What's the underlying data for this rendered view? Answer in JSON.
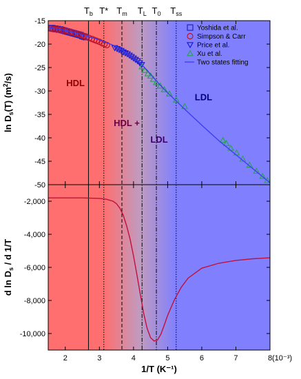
{
  "chart_data": {
    "type": "scatter",
    "shared_x": {
      "label": "1/T (K⁻¹)",
      "scale_label": "(10⁻³)",
      "range": [
        1.5,
        8.0
      ],
      "ticks": [
        "2",
        "3",
        "4",
        "5",
        "6",
        "7",
        "8"
      ]
    },
    "region_colors": {
      "hdl": "#ff6f6f",
      "mid": "#c09bc0",
      "ldl": "#8080ff"
    },
    "region_labels": [
      {
        "text": "HDL",
        "x": 2.3,
        "y": -29,
        "color": "#8b0000"
      },
      {
        "text": "HDL +",
        "x": 3.8,
        "y": -37.5,
        "color": "#6a0040"
      },
      {
        "text": "LDL",
        "x": 4.75,
        "y": -41,
        "color": "#3a006a"
      },
      {
        "text": "LDL",
        "x": 6.05,
        "y": -32,
        "color": "#00007a"
      }
    ],
    "markers": [
      {
        "label": "T_b",
        "main": "T",
        "sub": "b",
        "x": 2.68,
        "style": "solid"
      },
      {
        "label": "T*",
        "main": "T*",
        "sub": "",
        "x": 3.13,
        "style": "dotted"
      },
      {
        "label": "T_m",
        "main": "T",
        "sub": "m",
        "x": 3.66,
        "style": "dashed"
      },
      {
        "label": "T_L",
        "main": "T",
        "sub": "L",
        "x": 4.25,
        "style": "dashdot"
      },
      {
        "label": "T_0",
        "main": "T",
        "sub": "0",
        "x": 4.67,
        "style": "dashdotdot"
      },
      {
        "label": "T_ss",
        "main": "T",
        "sub": "ss",
        "x": 5.25,
        "style": "dotted"
      }
    ],
    "top_panel": {
      "ylabel_parts": [
        "ln D",
        "s",
        "(T) (m",
        "2",
        "/s)"
      ],
      "ylim": [
        -50,
        -15
      ],
      "y_ticks": [
        -15,
        -20,
        -25,
        -30,
        -35,
        -40,
        -45,
        -50
      ],
      "legend": [
        {
          "name": "Yoshida et al.",
          "marker": "square",
          "color": "#1f1fbf"
        },
        {
          "name": "Simpson & Carr",
          "marker": "circle",
          "color": "#c0102a"
        },
        {
          "name": "Price et al.",
          "marker": "triangle-down",
          "color": "#1a1ad0"
        },
        {
          "name": "Xu et al.",
          "marker": "triangle-up",
          "color": "#2aa05a"
        },
        {
          "name": "Two states fitting",
          "marker": "line",
          "color": "#3b3bf0"
        }
      ],
      "series": [
        {
          "name": "Yoshida et al.",
          "x": [
            1.58,
            1.62,
            1.66,
            1.7,
            1.74,
            1.78,
            1.82,
            1.86,
            1.9,
            1.95,
            2.0,
            2.05,
            2.1,
            2.15,
            2.2,
            2.25,
            2.3,
            2.35,
            2.4,
            2.45,
            2.5,
            2.55,
            2.6
          ],
          "y": [
            -16.6,
            -16.6,
            -16.7,
            -16.7,
            -16.8,
            -16.8,
            -16.9,
            -16.9,
            -17.0,
            -17.1,
            -17.2,
            -17.3,
            -17.4,
            -17.5,
            -17.6,
            -17.7,
            -17.8,
            -17.9,
            -18.0,
            -18.1,
            -18.3,
            -18.4,
            -18.5
          ]
        },
        {
          "name": "Simpson & Carr",
          "x": [
            1.58,
            1.65,
            1.72,
            1.8,
            1.88,
            1.95,
            2.02,
            2.1,
            2.18,
            2.25,
            2.32,
            2.4,
            2.48,
            2.55,
            2.62,
            2.7,
            2.78,
            2.85,
            2.92,
            3.0,
            3.08,
            3.15,
            3.22
          ],
          "y": [
            -16.7,
            -16.8,
            -16.8,
            -16.9,
            -17.0,
            -17.1,
            -17.2,
            -17.3,
            -17.5,
            -17.6,
            -17.8,
            -17.9,
            -18.1,
            -18.3,
            -18.5,
            -18.7,
            -18.9,
            -19.1,
            -19.3,
            -19.5,
            -19.8,
            -20.0,
            -20.2
          ]
        },
        {
          "name": "Price et al.",
          "x": [
            3.45,
            3.52,
            3.58,
            3.64,
            3.7,
            3.76,
            3.82,
            3.88,
            3.94,
            4.0,
            4.06,
            4.12,
            4.18,
            4.24
          ],
          "y": [
            -20.8,
            -21.0,
            -21.2,
            -21.4,
            -21.7,
            -21.9,
            -22.1,
            -22.4,
            -22.7,
            -23.0,
            -23.3,
            -23.6,
            -24.0,
            -24.4
          ]
        },
        {
          "name": "Xu et al.",
          "x": [
            4.25,
            4.33,
            4.42,
            4.5,
            4.58,
            4.67,
            4.78,
            4.9,
            5.05,
            5.25,
            5.5,
            6.62,
            6.72,
            6.85,
            7.02,
            7.2,
            7.4,
            7.6,
            7.78,
            7.92
          ],
          "y": [
            -24.8,
            -25.6,
            -26.3,
            -26.8,
            -27.5,
            -28.2,
            -28.9,
            -29.7,
            -30.6,
            -31.9,
            -33.3,
            -40.5,
            -41.2,
            -42.2,
            -43.2,
            -44.5,
            -45.8,
            -47.1,
            -48.2,
            -49.1
          ]
        },
        {
          "name": "Two states fitting",
          "type": "line",
          "x": [
            1.5,
            2.0,
            2.5,
            3.0,
            3.5,
            4.0,
            4.2,
            4.4,
            4.6,
            4.8,
            5.0,
            5.5,
            6.0,
            6.5,
            7.0,
            7.5,
            8.0
          ],
          "y": [
            -16.4,
            -17.1,
            -18.0,
            -19.1,
            -20.5,
            -22.9,
            -24.1,
            -25.6,
            -27.3,
            -28.9,
            -30.4,
            -33.9,
            -37.3,
            -40.6,
            -43.6,
            -46.6,
            -49.6
          ]
        }
      ]
    },
    "bottom_panel": {
      "ylabel_parts": [
        "d ln D",
        "s",
        " / d 1/T"
      ],
      "ylim": [
        -11000,
        -1000
      ],
      "y_ticks": [
        "-2,000",
        "-4,000",
        "-6,000",
        "-8,000",
        "-10,000"
      ],
      "y_tick_values": [
        -2000,
        -4000,
        -6000,
        -8000,
        -10000
      ],
      "series": [
        {
          "name": "derivative",
          "type": "line",
          "x": [
            1.5,
            2.0,
            2.5,
            3.0,
            3.2,
            3.4,
            3.5,
            3.6,
            3.7,
            3.8,
            3.9,
            4.0,
            4.1,
            4.2,
            4.3,
            4.4,
            4.5,
            4.6,
            4.7,
            4.8,
            4.9,
            5.0,
            5.2,
            5.4,
            5.6,
            6.0,
            6.5,
            7.0,
            7.5,
            8.0
          ],
          "y": [
            -1800,
            -1800,
            -1800,
            -1830,
            -1880,
            -2000,
            -2150,
            -2420,
            -2850,
            -3500,
            -4300,
            -5300,
            -6450,
            -7650,
            -8800,
            -9700,
            -10250,
            -10450,
            -10400,
            -10050,
            -9500,
            -8900,
            -7950,
            -7200,
            -6650,
            -6050,
            -5750,
            -5580,
            -5480,
            -5420
          ]
        }
      ]
    }
  }
}
